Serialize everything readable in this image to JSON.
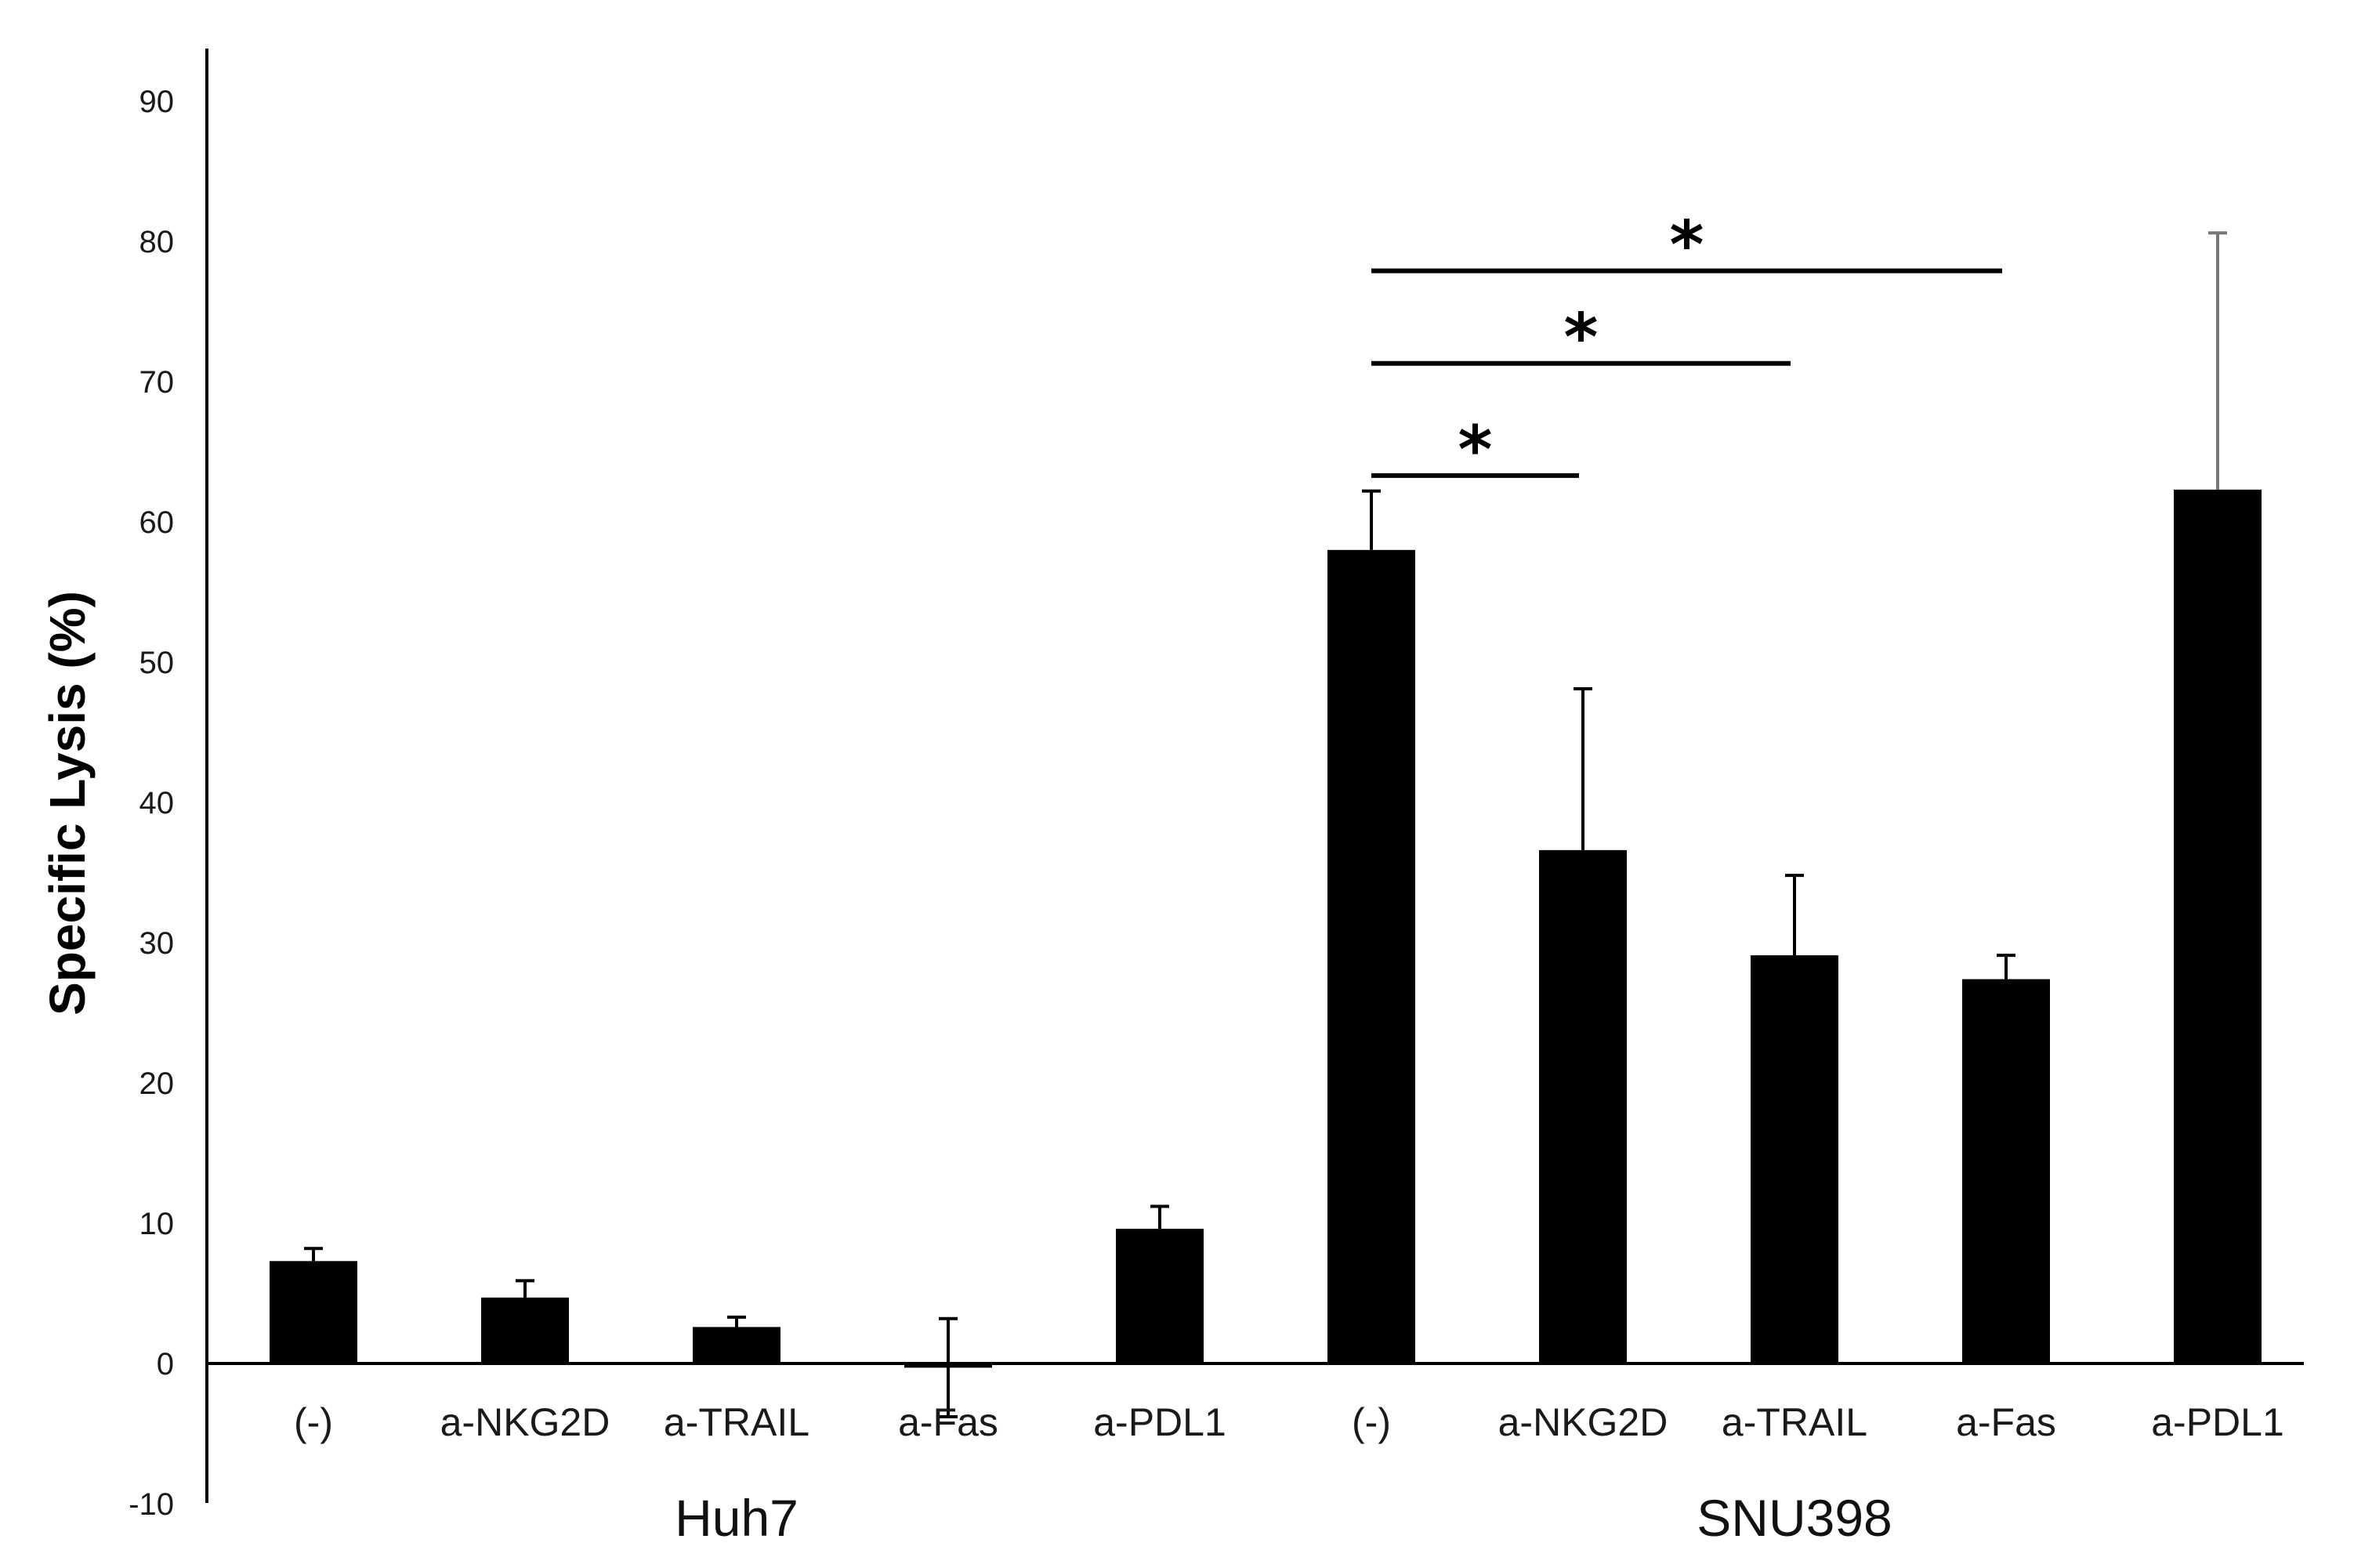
{
  "chart_data": {
    "type": "bar",
    "ylabel": "Specific Lysis (%)",
    "ylim": [
      -10,
      90
    ],
    "yticks": [
      -10,
      0,
      10,
      20,
      30,
      40,
      50,
      60,
      70,
      80,
      90
    ],
    "groups": [
      {
        "label": "Huh7",
        "start": 0,
        "end": 4
      },
      {
        "label": "SNU398",
        "start": 5,
        "end": 9
      }
    ],
    "categories": [
      "(-)",
      "a-NKG2D",
      "a-TRAIL",
      "a-Fas",
      "a-PDL1",
      "(-)",
      "a-NKG2D",
      "a-TRAIL",
      "a-Fas",
      "a-PDL1"
    ],
    "values": [
      7.3,
      4.7,
      2.6,
      -0.3,
      9.6,
      58.0,
      36.6,
      29.1,
      27.4,
      62.3
    ],
    "errors": [
      0.9,
      1.2,
      0.7,
      3.5,
      1.6,
      4.2,
      11.5,
      5.7,
      1.7,
      18.3
    ],
    "significance": [
      {
        "from": 5,
        "to": 6,
        "label": "*",
        "y": 63.3
      },
      {
        "from": 5,
        "to": 7,
        "label": "*",
        "y": 71.3
      },
      {
        "from": 5,
        "to": 8,
        "label": "*",
        "y": 77.9
      }
    ],
    "colors": {
      "bar": "#000000",
      "axis": "#000000",
      "error": "#000000",
      "error_last": "#777777"
    }
  }
}
